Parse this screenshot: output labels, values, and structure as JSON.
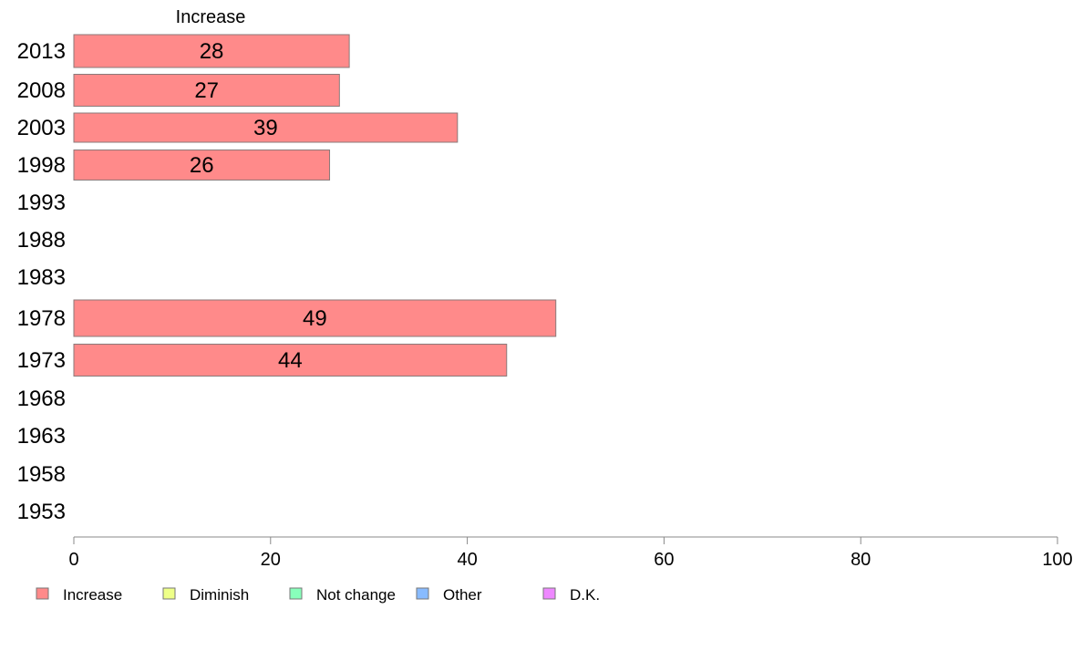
{
  "chart_data": {
    "type": "bar",
    "orientation": "horizontal",
    "title": "Increase",
    "categories": [
      "2013",
      "2008",
      "2003",
      "1998",
      "1993",
      "1988",
      "1983",
      "1978",
      "1973",
      "1968",
      "1963",
      "1958",
      "1953"
    ],
    "series": [
      {
        "name": "Increase",
        "color": "#ff8a8a",
        "values": [
          28,
          27,
          39,
          26,
          null,
          null,
          null,
          49,
          44,
          null,
          null,
          null,
          null
        ]
      }
    ],
    "xlim": [
      0,
      100
    ],
    "xticks": [
      0,
      20,
      40,
      60,
      80,
      100
    ],
    "grid": false,
    "legend": {
      "placement": "bottom",
      "items": [
        {
          "label": "Increase",
          "color": "#ff8a8a"
        },
        {
          "label": "Diminish",
          "color": "#eeff88"
        },
        {
          "label": "Not change",
          "color": "#88ffbb"
        },
        {
          "label": "Other",
          "color": "#88bbff"
        },
        {
          "label": "D.K.",
          "color": "#ee88ff"
        }
      ]
    }
  }
}
